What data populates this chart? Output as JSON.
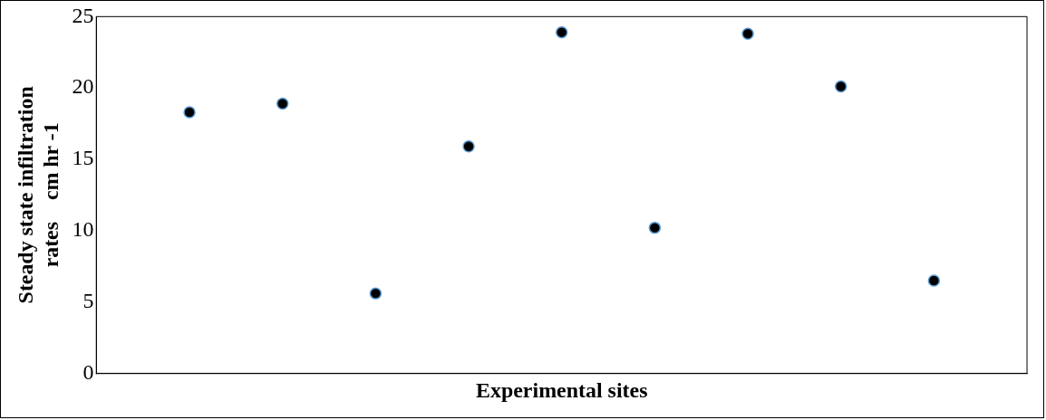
{
  "chart_data": {
    "type": "scatter",
    "xlabel": "Experimental sites",
    "ylabel": "Steady state infiltration rates    cm hr -1",
    "categories": [
      null,
      null,
      null,
      null,
      null,
      null,
      null,
      null,
      null
    ],
    "series": [
      {
        "color": "#000000",
        "values": [
          18.3,
          18.9,
          5.6,
          15.9,
          23.9,
          10.2,
          23.8,
          20.1,
          6.5
        ]
      }
    ],
    "ylim": [
      0,
      25
    ],
    "yticks": [
      0,
      5,
      10,
      15,
      20,
      25
    ],
    "tick_labels": "y",
    "grid": false,
    "legend": false,
    "marker": "circle"
  }
}
